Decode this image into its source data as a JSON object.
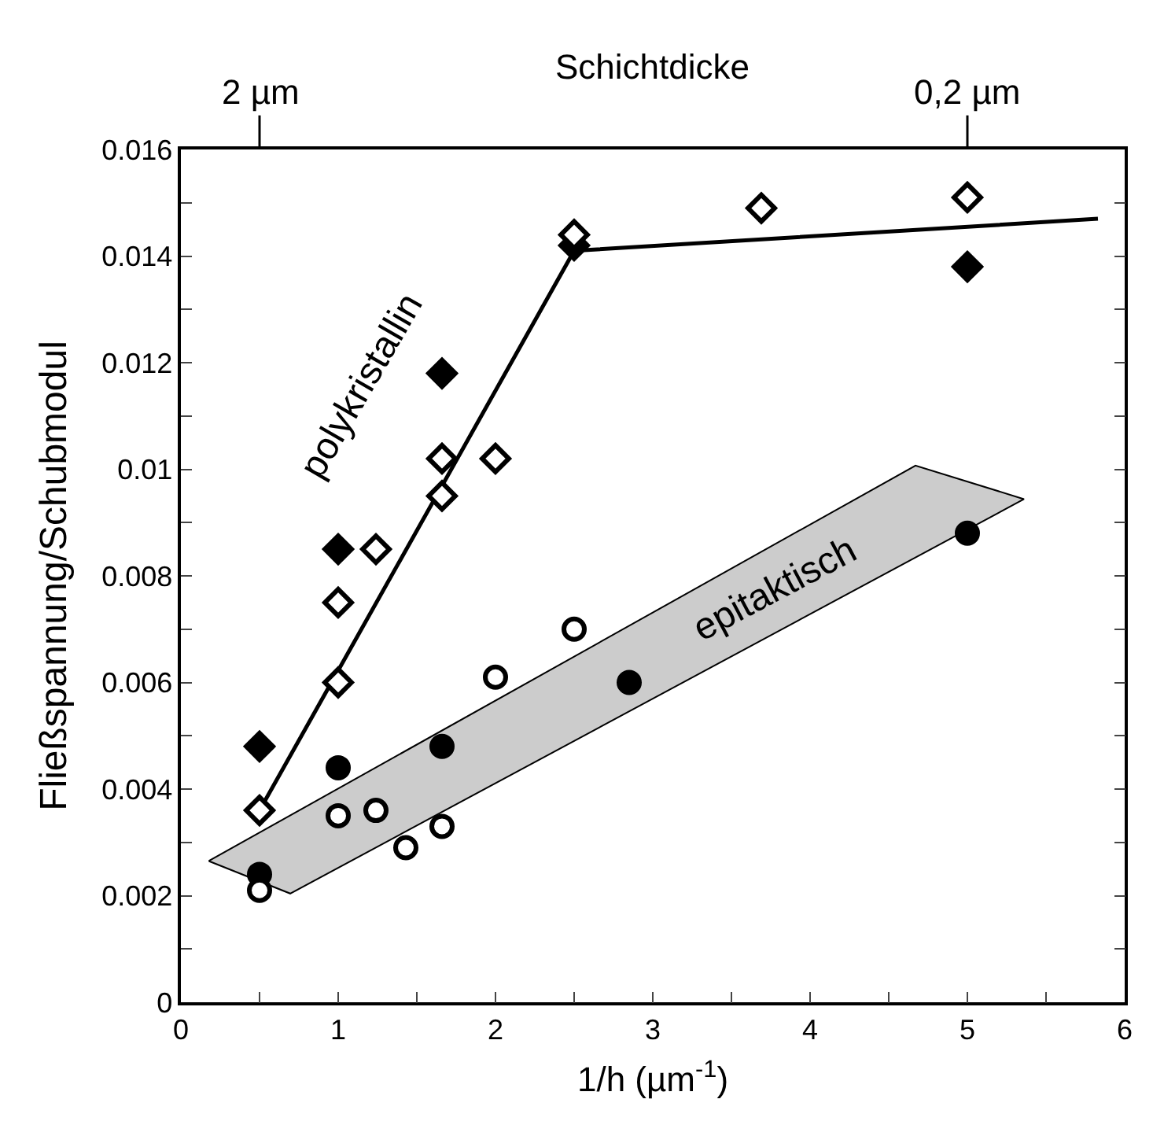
{
  "chart_data": {
    "type": "scatter",
    "xlabel": "1/h (µm$^{-1}$)",
    "ylabel": "Fließspannung/Schubmodul",
    "x2label": "Schichtdicke",
    "xlim": [
      0,
      6
    ],
    "xticks": [
      0,
      {
        "value": 0.5,
        "label": null
      },
      1,
      {
        "value": 1.5,
        "label": null
      },
      2,
      {
        "value": 2.5,
        "label": null
      },
      3,
      {
        "value": 3.5,
        "label": null
      },
      4,
      {
        "value": 4.5,
        "label": null
      },
      5,
      {
        "value": 5.5,
        "label": null
      },
      6
    ],
    "annotations": [
      {
        "text": "2 µm",
        "x": 0.5
      },
      {
        "text": "0,2 µm",
        "x": 5
      }
    ],
    "ylim": [
      0,
      0.016
    ],
    "yticks": [
      0,
      {
        "value": 0.001,
        "label": null
      },
      0.002,
      {
        "value": 0.003,
        "label": null
      },
      0.004,
      {
        "value": 0.005,
        "label": null
      },
      0.006,
      {
        "value": 0.007,
        "label": null
      },
      0.008,
      {
        "value": 0.009,
        "label": null
      },
      0.01,
      {
        "value": 0.011,
        "label": null
      },
      0.012,
      {
        "value": 0.013,
        "label": null
      },
      0.014,
      {
        "value": 0.015,
        "label": null
      },
      0.016
    ],
    "series": [
      {
        "type": "area",
        "name": "epitaktisch",
        "color": "#cccccc",
        "x": [
          0.177,
          0.695,
          5.36,
          4.67,
          0.177
        ],
        "values": [
          0.00265,
          0.00204,
          0.00944,
          0.01007,
          0.00265
        ]
      },
      {
        "type": "line",
        "name": "polykristallin",
        "color": "#000000",
        "marker": "none",
        "line_style": "solid",
        "x": [
          0.5,
          2.5,
          5.83
        ],
        "values": [
          0.0036,
          0.0141,
          0.0147
        ]
      },
      {
        "color": "#000000",
        "marker": "diamond",
        "x": [
          0.5,
          1,
          1.66,
          2.5,
          5
        ],
        "values": [
          0.0048,
          0.0085,
          0.0118,
          0.0142,
          0.0138
        ]
      },
      {
        "color": "#ffffff",
        "marker": "diamond",
        "x": [
          0.5,
          1,
          1,
          1.24,
          1.66,
          1.66,
          2,
          2.5,
          3.69,
          5
        ],
        "values": [
          0.0036,
          0.006,
          0.0075,
          0.0085,
          0.0095,
          0.0102,
          0.0102,
          0.0144,
          0.0149,
          0.0151
        ]
      },
      {
        "color": "#000000",
        "marker": "circle",
        "x": [
          0.5,
          1,
          1.66,
          2.85,
          5
        ],
        "values": [
          0.0024,
          0.0044,
          0.0048,
          0.006,
          0.0088
        ]
      },
      {
        "color": "#ffffff",
        "marker": "circle",
        "x": [
          0.5,
          1,
          1.24,
          1.43,
          1.66,
          2,
          2.5
        ],
        "values": [
          0.0021,
          0.0035,
          0.0036,
          0.0029,
          0.0033,
          0.0061,
          0.007
        ]
      }
    ]
  }
}
